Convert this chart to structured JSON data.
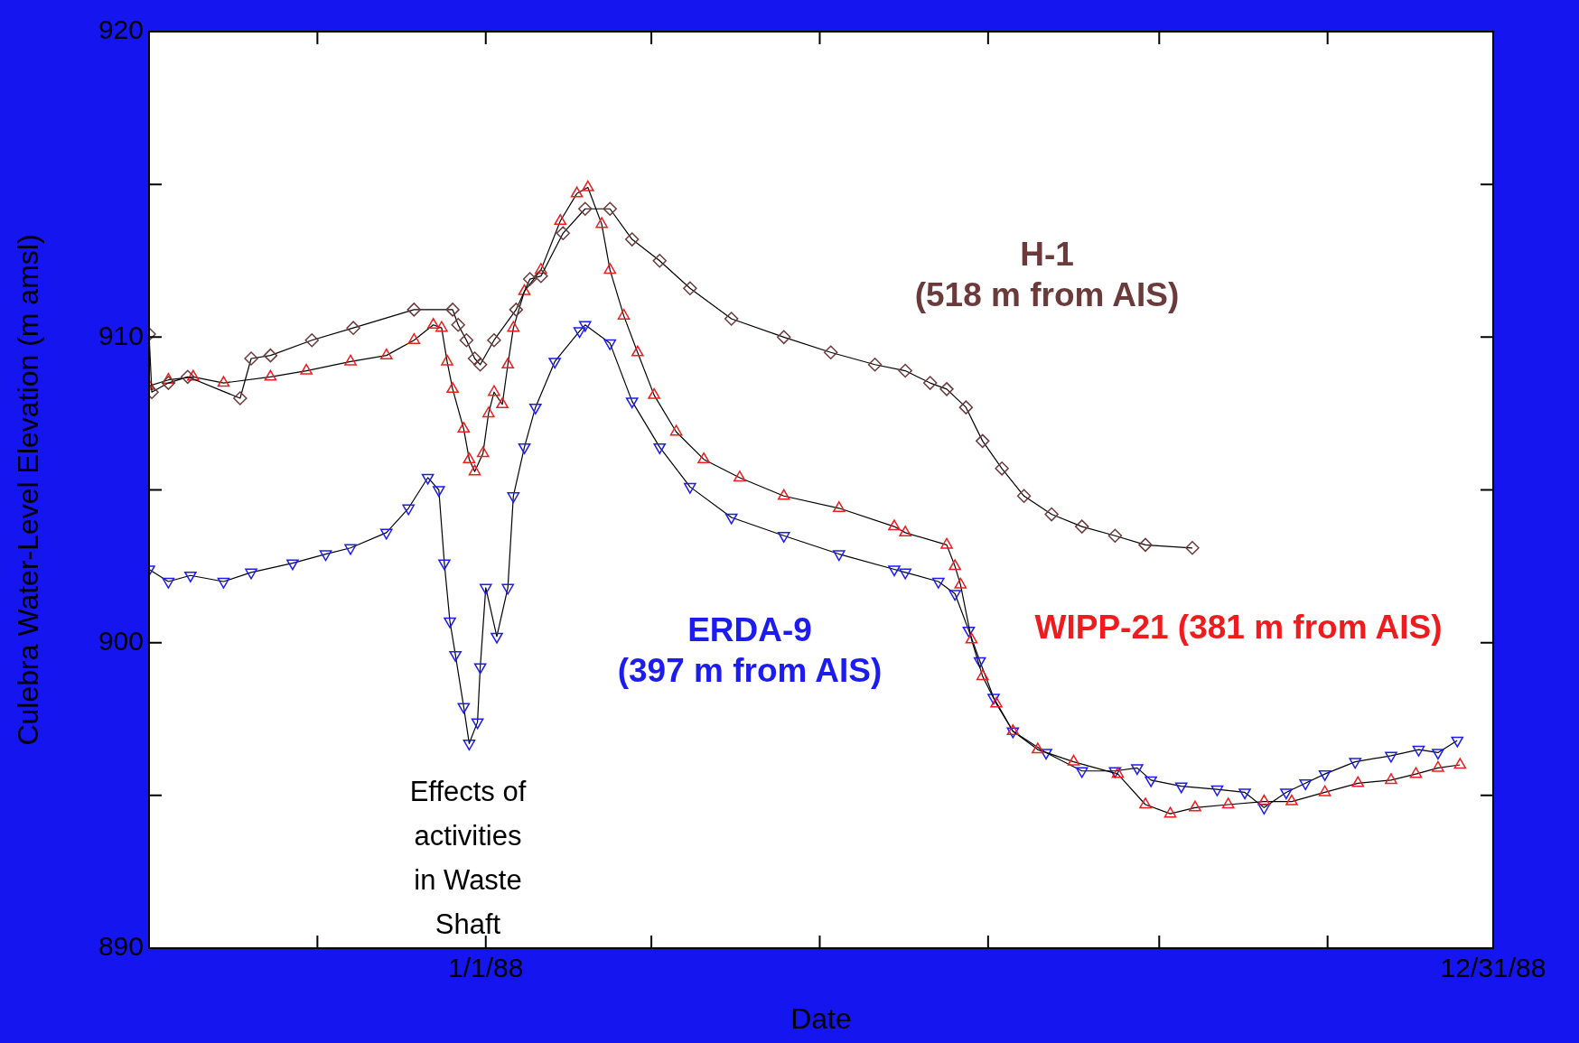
{
  "chart_data": {
    "type": "line",
    "xlabel": "Date",
    "ylabel": "Culebra Water-Level Elevation (m amsl)",
    "xlim": [
      "1987-09-01",
      "1988-12-31"
    ],
    "xticks": [
      {
        "value": "1987-09-01",
        "label": null
      },
      {
        "value": "1987-11-01",
        "label": null
      },
      {
        "value": "1988-01-01",
        "label": "1/1/88"
      },
      {
        "value": "1988-03-01",
        "label": null
      },
      {
        "value": "1988-05-01",
        "label": null
      },
      {
        "value": "1988-07-01",
        "label": null
      },
      {
        "value": "1988-09-01",
        "label": null
      },
      {
        "value": "1988-11-01",
        "label": null
      },
      {
        "value": "1988-12-31",
        "label": "12/31/88"
      }
    ],
    "ylim": [
      890,
      920
    ],
    "yticks": [
      890,
      {
        "value": 895,
        "label": null
      },
      900,
      {
        "value": 905,
        "label": null
      },
      910,
      {
        "value": 915,
        "label": null
      },
      920
    ],
    "line_style": "solid",
    "annotations": [
      "Effects of activities in Waste Shaft"
    ],
    "series": [
      {
        "name": "H-1 (518 m from AIS)",
        "color": "#6b3b3b",
        "marker": "diamond",
        "x": [
          "1987-09-01",
          "1987-09-02",
          "1987-09-08",
          "1987-09-15",
          "1987-10-04",
          "1987-10-08",
          "1987-10-15",
          "1987-10-30",
          "1987-11-14",
          "1987-12-06",
          "1987-12-20",
          "1987-12-22",
          "1987-12-25",
          "1987-12-28",
          "1987-12-30",
          "1988-01-04",
          "1988-01-12",
          "1988-01-17",
          "1988-01-21",
          "1988-01-29",
          "1988-02-06",
          "1988-02-15",
          "1988-02-23",
          "1988-03-04",
          "1988-03-15",
          "1988-03-30",
          "1988-04-18",
          "1988-05-05",
          "1988-05-21",
          "1988-06-01",
          "1988-06-10",
          "1988-06-16",
          "1988-06-23",
          "1988-06-29",
          "1988-07-06",
          "1988-07-14",
          "1988-07-24",
          "1988-08-04",
          "1988-08-16",
          "1988-08-27",
          "1988-09-13"
        ],
        "values": [
          910.1,
          908.2,
          908.5,
          908.7,
          908.0,
          909.3,
          909.4,
          909.9,
          910.3,
          910.9,
          910.9,
          910.4,
          909.9,
          909.3,
          909.1,
          909.9,
          910.9,
          911.9,
          912.0,
          913.4,
          914.2,
          914.2,
          913.2,
          912.5,
          911.6,
          910.6,
          910.0,
          909.5,
          909.1,
          908.9,
          908.5,
          908.3,
          907.7,
          906.6,
          905.7,
          904.8,
          904.2,
          903.8,
          903.5,
          903.2,
          903.1
        ]
      },
      {
        "name": "WIPP-21 (381 m from AIS)",
        "color": "#ee1c1c",
        "marker": "triangle",
        "x": [
          "1987-09-01",
          "1987-09-08",
          "1987-09-17",
          "1987-09-28",
          "1987-10-15",
          "1987-10-28",
          "1987-11-13",
          "1987-11-26",
          "1987-12-06",
          "1987-12-13",
          "1987-12-16",
          "1987-12-18",
          "1987-12-20",
          "1987-12-24",
          "1987-12-26",
          "1987-12-28",
          "1987-12-31",
          "1988-01-02",
          "1988-01-04",
          "1988-01-07",
          "1988-01-09",
          "1988-01-11",
          "1988-01-15",
          "1988-01-21",
          "1988-01-28",
          "1988-02-03",
          "1988-02-07",
          "1988-02-12",
          "1988-02-15",
          "1988-02-20",
          "1988-02-25",
          "1988-03-02",
          "1988-03-10",
          "1988-03-20",
          "1988-04-02",
          "1988-04-18",
          "1988-05-08",
          "1988-05-28",
          "1988-06-01",
          "1988-06-16",
          "1988-06-19",
          "1988-06-21",
          "1988-06-25",
          "1988-06-29",
          "1988-07-04",
          "1988-07-10",
          "1988-07-19",
          "1988-08-01",
          "1988-08-17",
          "1988-08-27",
          "1988-09-05",
          "1988-09-14",
          "1988-09-26",
          "1988-10-09",
          "1988-10-19",
          "1988-10-31",
          "1988-11-12",
          "1988-11-24",
          "1988-12-03",
          "1988-12-11",
          "1988-12-19"
        ],
        "values": [
          908.4,
          908.6,
          908.7,
          908.5,
          908.7,
          908.9,
          909.2,
          909.4,
          909.9,
          910.4,
          910.3,
          909.2,
          908.3,
          907.0,
          906.0,
          905.6,
          906.2,
          907.5,
          908.2,
          907.8,
          909.1,
          910.3,
          911.5,
          912.2,
          913.8,
          914.7,
          914.9,
          913.7,
          912.2,
          910.7,
          909.5,
          908.1,
          906.9,
          906.0,
          905.4,
          904.8,
          904.4,
          903.8,
          903.6,
          903.2,
          902.5,
          901.9,
          900.1,
          898.9,
          898.0,
          897.1,
          896.5,
          896.1,
          895.7,
          894.7,
          894.4,
          894.6,
          894.7,
          894.8,
          894.8,
          895.1,
          895.4,
          895.5,
          895.7,
          895.9,
          896.0
        ]
      },
      {
        "name": "ERDA-9 (397 m from AIS)",
        "color": "#1c1cee",
        "marker": "triangle-down",
        "x": [
          "1987-09-01",
          "1987-09-08",
          "1987-09-16",
          "1987-09-28",
          "1987-10-08",
          "1987-10-23",
          "1987-11-04",
          "1987-11-13",
          "1987-11-26",
          "1987-12-04",
          "1987-12-11",
          "1987-12-15",
          "1987-12-17",
          "1987-12-19",
          "1987-12-21",
          "1987-12-24",
          "1987-12-26",
          "1987-12-29",
          "1987-12-30",
          "1988-01-01",
          "1988-01-05",
          "1988-01-09",
          "1988-01-11",
          "1988-01-15",
          "1988-01-19",
          "1988-01-26",
          "1988-02-04",
          "1988-02-06",
          "1988-02-15",
          "1988-02-23",
          "1988-03-04",
          "1988-03-15",
          "1988-03-30",
          "1988-04-18",
          "1988-05-08",
          "1988-05-28",
          "1988-06-01",
          "1988-06-13",
          "1988-06-19",
          "1988-06-24",
          "1988-06-28",
          "1988-07-03",
          "1988-07-10",
          "1988-07-22",
          "1988-08-04",
          "1988-08-16",
          "1988-08-24",
          "1988-08-29",
          "1988-09-09",
          "1988-09-22",
          "1988-10-02",
          "1988-10-09",
          "1988-10-17",
          "1988-10-24",
          "1988-10-31",
          "1988-11-11",
          "1988-11-24",
          "1988-12-04",
          "1988-12-11",
          "1988-12-18"
        ],
        "values": [
          902.4,
          902.0,
          902.2,
          902.0,
          902.3,
          902.6,
          902.9,
          903.1,
          903.6,
          904.4,
          905.4,
          905.0,
          902.6,
          900.7,
          899.6,
          897.9,
          896.7,
          897.4,
          899.2,
          901.8,
          900.2,
          901.8,
          904.8,
          906.4,
          907.7,
          909.2,
          910.2,
          910.4,
          909.8,
          907.9,
          906.4,
          905.1,
          904.1,
          903.5,
          902.9,
          902.4,
          902.3,
          902.0,
          901.6,
          900.4,
          899.4,
          898.2,
          897.1,
          896.4,
          895.8,
          895.8,
          895.9,
          895.5,
          895.3,
          895.2,
          895.1,
          894.6,
          895.1,
          895.4,
          895.7,
          896.1,
          896.3,
          896.5,
          896.4,
          896.8
        ]
      }
    ]
  }
}
